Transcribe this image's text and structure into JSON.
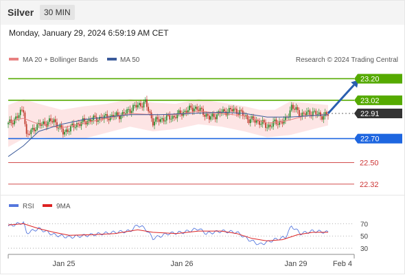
{
  "header": {
    "symbol": "Silver",
    "interval": "30 MIN"
  },
  "datetime": "Monday, January 29, 2024 6:59:19 AM CET",
  "legend": {
    "ma20_label": "MA 20 + Bollinger Bands",
    "ma50_label": "MA 50",
    "copyright": "Research © 2024 Trading Central",
    "rsi_label": "RSI",
    "rsi_ma_label": "9MA"
  },
  "colors": {
    "up": "#2e8b2e",
    "down": "#c0392b",
    "ma20": "#e88080",
    "ma50": "#3a5a9a",
    "band": "#fde0e0",
    "resistance": "#55aa00",
    "support": "#1e66e0",
    "target": "#cc3333",
    "current": "#333333",
    "arrow": "#2a5fb0",
    "rsi": "#5577dd",
    "rsi_ma": "#dd2222"
  },
  "chart_data": [
    {
      "type": "candlestick",
      "title": "Silver",
      "ylim": [
        22.25,
        23.26
      ],
      "x_ticks": [
        "Jan 25",
        "Jan 26",
        "Jan 29",
        "Feb 4"
      ],
      "close_path": [
        [
          0,
          22.82
        ],
        [
          6,
          22.88
        ],
        [
          10,
          22.95
        ],
        [
          12,
          22.72
        ],
        [
          18,
          22.8
        ],
        [
          24,
          22.83
        ],
        [
          30,
          22.85
        ],
        [
          36,
          22.75
        ],
        [
          45,
          22.82
        ],
        [
          55,
          22.86
        ],
        [
          65,
          22.88
        ],
        [
          75,
          22.9
        ],
        [
          82,
          22.96
        ],
        [
          90,
          23.0
        ],
        [
          95,
          22.84
        ],
        [
          100,
          22.86
        ],
        [
          108,
          22.88
        ],
        [
          115,
          22.92
        ],
        [
          122,
          22.96
        ],
        [
          128,
          22.92
        ],
        [
          132,
          22.87
        ],
        [
          140,
          22.92
        ],
        [
          148,
          22.94
        ],
        [
          152,
          22.92
        ],
        [
          158,
          22.86
        ],
        [
          165,
          22.84
        ],
        [
          170,
          22.8
        ],
        [
          175,
          22.83
        ],
        [
          182,
          22.85
        ],
        [
          186,
          22.97
        ],
        [
          192,
          22.9
        ],
        [
          200,
          22.92
        ],
        [
          205,
          22.89
        ],
        [
          210,
          22.9
        ]
      ],
      "ma20_path": [
        [
          0,
          22.84
        ],
        [
          10,
          22.87
        ],
        [
          20,
          22.82
        ],
        [
          35,
          22.79
        ],
        [
          50,
          22.83
        ],
        [
          65,
          22.87
        ],
        [
          80,
          22.91
        ],
        [
          95,
          22.9
        ],
        [
          110,
          22.9
        ],
        [
          125,
          22.93
        ],
        [
          140,
          22.91
        ],
        [
          155,
          22.89
        ],
        [
          170,
          22.83
        ],
        [
          180,
          22.84
        ],
        [
          195,
          22.89
        ],
        [
          210,
          22.9
        ]
      ],
      "ma50_path": [
        [
          0,
          22.55
        ],
        [
          10,
          22.64
        ],
        [
          20,
          22.76
        ],
        [
          35,
          22.82
        ],
        [
          50,
          22.86
        ],
        [
          65,
          22.88
        ],
        [
          80,
          22.9
        ],
        [
          100,
          22.9
        ],
        [
          120,
          22.91
        ],
        [
          140,
          22.92
        ],
        [
          155,
          22.91
        ],
        [
          170,
          22.88
        ],
        [
          185,
          22.88
        ],
        [
          210,
          22.9
        ]
      ],
      "bollinger_upper": [
        [
          0,
          22.98
        ],
        [
          10,
          23.03
        ],
        [
          20,
          22.99
        ],
        [
          35,
          22.94
        ],
        [
          50,
          22.97
        ],
        [
          65,
          22.99
        ],
        [
          80,
          23.03
        ],
        [
          95,
          23.0
        ],
        [
          110,
          22.99
        ],
        [
          125,
          23.03
        ],
        [
          140,
          23.0
        ],
        [
          155,
          22.97
        ],
        [
          165,
          22.94
        ],
        [
          175,
          22.94
        ],
        [
          185,
          23.01
        ],
        [
          210,
          22.98
        ]
      ],
      "bollinger_lower": [
        [
          0,
          22.63
        ],
        [
          10,
          22.7
        ],
        [
          20,
          22.71
        ],
        [
          35,
          22.7
        ],
        [
          50,
          22.7
        ],
        [
          65,
          22.75
        ],
        [
          80,
          22.8
        ],
        [
          95,
          22.76
        ],
        [
          110,
          22.78
        ],
        [
          125,
          22.82
        ],
        [
          140,
          22.8
        ],
        [
          155,
          22.76
        ],
        [
          170,
          22.71
        ],
        [
          185,
          22.73
        ],
        [
          210,
          22.81
        ]
      ],
      "levels": [
        {
          "label": "23.20",
          "value": 23.2,
          "kind": "resistance"
        },
        {
          "label": "23.02",
          "value": 23.02,
          "kind": "resistance"
        },
        {
          "label": "22.91",
          "value": 22.91,
          "kind": "current"
        },
        {
          "label": "22.70",
          "value": 22.7,
          "kind": "support"
        },
        {
          "label": "22.50",
          "value": 22.5,
          "kind": "target"
        },
        {
          "label": "22.32",
          "value": 22.32,
          "kind": "target"
        }
      ],
      "projection": {
        "from": [
          210,
          22.91
        ],
        "to": [
          230,
          23.19
        ]
      }
    },
    {
      "type": "line",
      "title": "RSI",
      "ylim": [
        20,
        85
      ],
      "y_ticks": [
        70,
        50,
        30
      ],
      "rsi_path": [
        [
          0,
          66
        ],
        [
          10,
          72
        ],
        [
          12,
          55
        ],
        [
          20,
          62
        ],
        [
          30,
          52
        ],
        [
          40,
          48
        ],
        [
          55,
          52
        ],
        [
          70,
          56
        ],
        [
          80,
          58
        ],
        [
          85,
          68
        ],
        [
          90,
          62
        ],
        [
          95,
          46
        ],
        [
          105,
          54
        ],
        [
          115,
          56
        ],
        [
          125,
          62
        ],
        [
          130,
          54
        ],
        [
          140,
          58
        ],
        [
          150,
          56
        ],
        [
          158,
          44
        ],
        [
          165,
          36
        ],
        [
          175,
          44
        ],
        [
          182,
          48
        ],
        [
          186,
          66
        ],
        [
          192,
          54
        ],
        [
          200,
          58
        ],
        [
          210,
          56
        ]
      ],
      "ma_path": [
        [
          0,
          68
        ],
        [
          10,
          70
        ],
        [
          20,
          62
        ],
        [
          30,
          56
        ],
        [
          40,
          51
        ],
        [
          55,
          52
        ],
        [
          70,
          54
        ],
        [
          85,
          60
        ],
        [
          95,
          56
        ],
        [
          110,
          54
        ],
        [
          125,
          58
        ],
        [
          140,
          58
        ],
        [
          150,
          54
        ],
        [
          160,
          46
        ],
        [
          170,
          42
        ],
        [
          180,
          44
        ],
        [
          190,
          52
        ],
        [
          200,
          56
        ],
        [
          210,
          56
        ]
      ]
    }
  ]
}
